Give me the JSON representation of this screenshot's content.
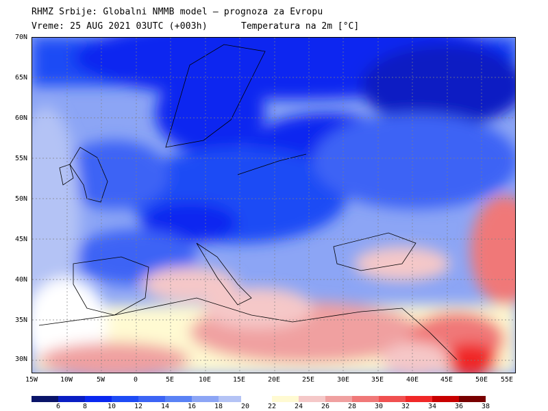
{
  "header": {
    "line1": "RHMZ Srbije: Globalni NMMB model — prognoza za Evropu",
    "line2_left": "Vreme: 25 AUG 2021 03UTC (+003h)",
    "line2_right": "Temperatura na 2m [°C]"
  },
  "axes": {
    "lat_labels": [
      "70N",
      "65N",
      "60N",
      "55N",
      "50N",
      "45N",
      "40N",
      "35N",
      "30N"
    ],
    "lon_labels": [
      "15W",
      "10W",
      "5W",
      "0",
      "5E",
      "10E",
      "15E",
      "20E",
      "25E",
      "30E",
      "35E",
      "40E",
      "45E",
      "50E",
      "55E"
    ]
  },
  "colorbar": {
    "labels": [
      "6",
      "8",
      "10",
      "12",
      "14",
      "16",
      "18",
      "20",
      "22",
      "24",
      "26",
      "28",
      "30",
      "32",
      "34",
      "36",
      "38"
    ],
    "colors": [
      "#0a1469",
      "#0a1ec3",
      "#0a28f0",
      "#1e4bf5",
      "#3c64f5",
      "#5a82f5",
      "#8ca5f5",
      "#b4c3f5",
      "#ffffff",
      "#fffad2",
      "#f5c8c8",
      "#f0a0a0",
      "#f07878",
      "#f05050",
      "#f02828",
      "#c80000",
      "#780000"
    ]
  }
}
